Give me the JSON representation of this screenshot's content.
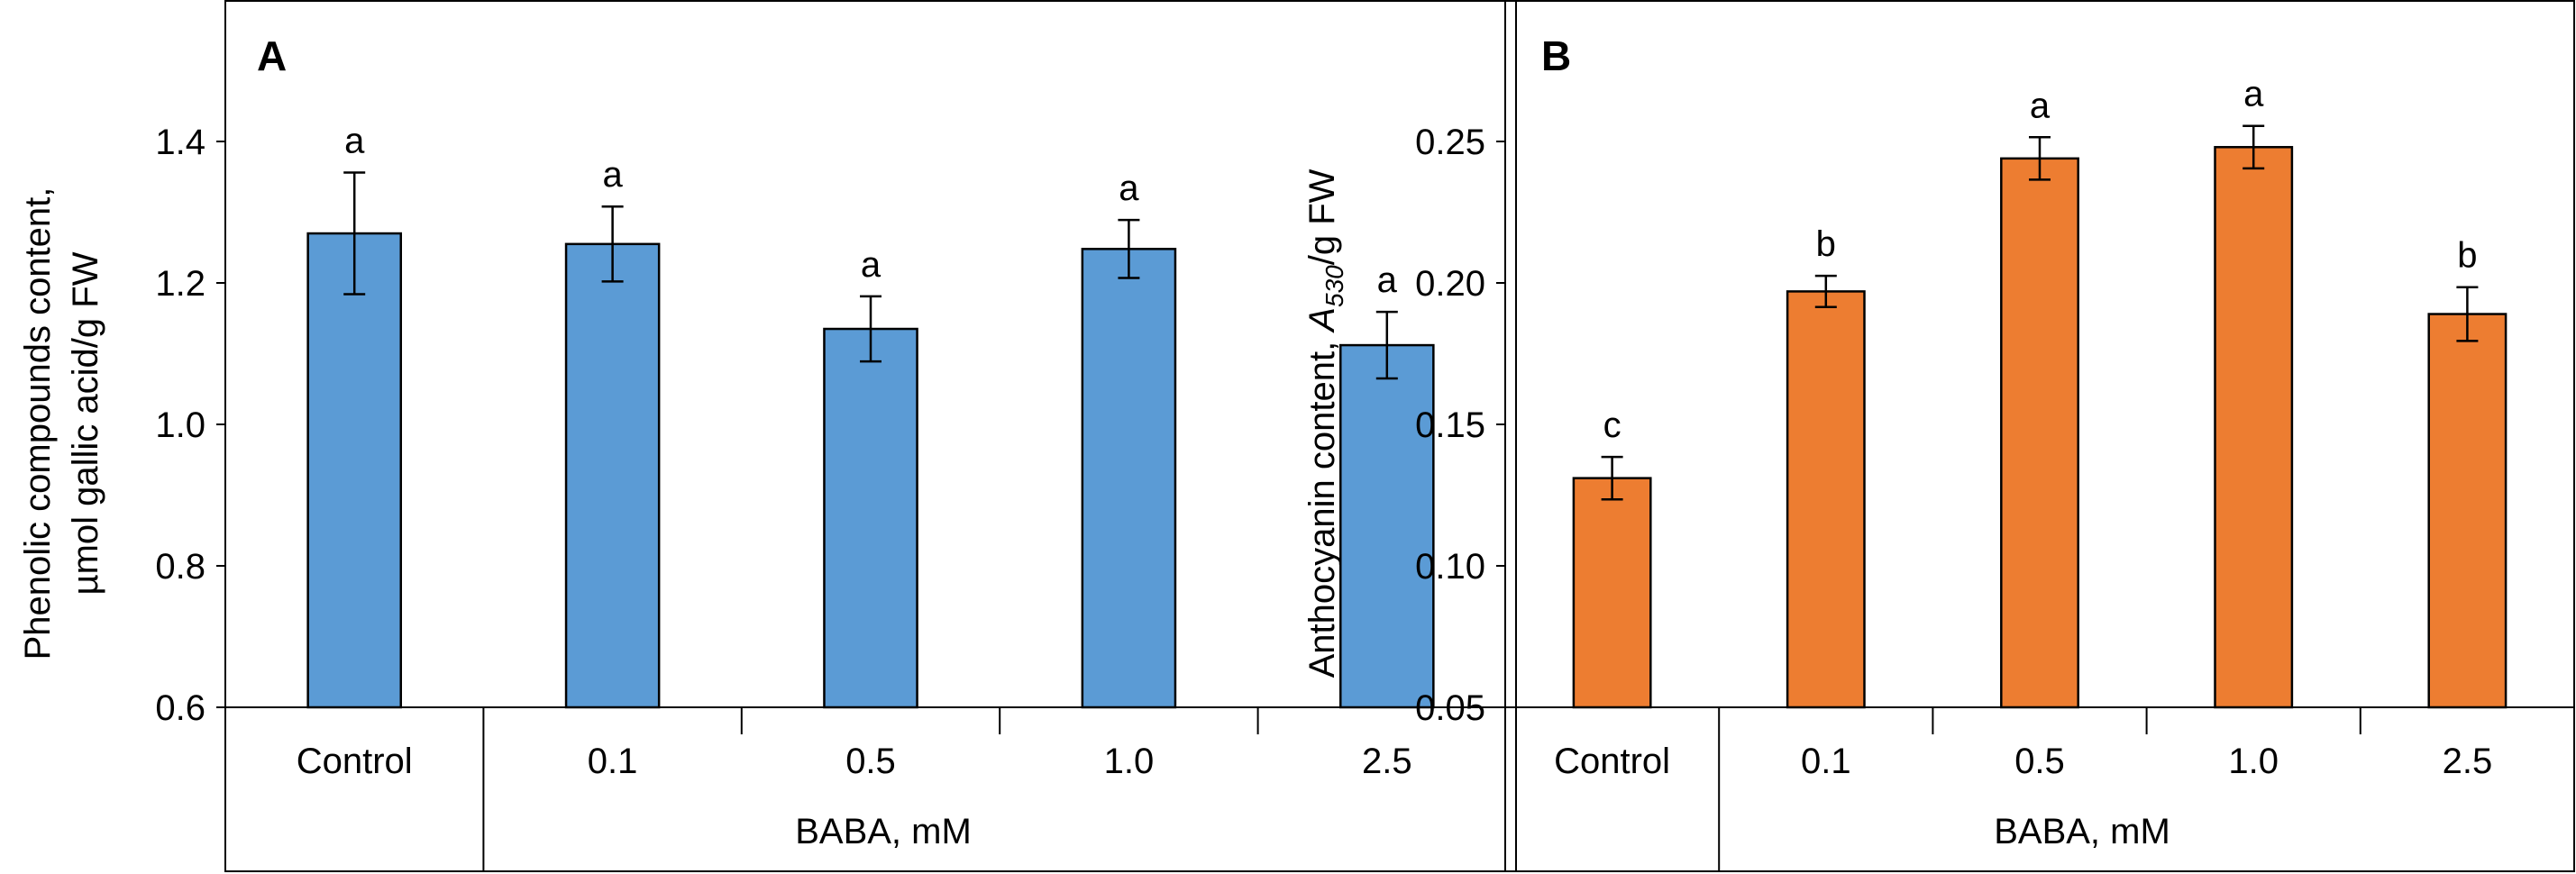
{
  "chart_data": [
    {
      "type": "bar",
      "panel_label": "A",
      "categories": [
        "Control",
        "0.1",
        "0.5",
        "1.0",
        "2.5"
      ],
      "group_label": "BABA, mM",
      "values": [
        1.27,
        1.255,
        1.135,
        1.248,
        1.112
      ],
      "errors": [
        0.086,
        0.053,
        0.046,
        0.041,
        0.047
      ],
      "significance": [
        "a",
        "a",
        "a",
        "a",
        "a"
      ],
      "ylabel_line1": "Phenolic compounds content,",
      "ylabel_line2": "µmol gallic acid/g FW",
      "ylim": [
        0.6,
        1.6
      ],
      "yticks": [
        "0.6",
        "0.8",
        "1.0",
        "1.2",
        "1.4"
      ],
      "ytick_values": [
        0.6,
        0.8,
        1.0,
        1.2,
        1.4
      ],
      "bar_color": "#5b9bd5"
    },
    {
      "type": "bar",
      "panel_label": "B",
      "categories": [
        "Control",
        "0.1",
        "0.5",
        "1.0",
        "2.5"
      ],
      "group_label": "BABA, mM",
      "values": [
        0.131,
        0.197,
        0.244,
        0.248,
        0.189
      ],
      "errors": [
        0.0075,
        0.0055,
        0.0075,
        0.0075,
        0.0095
      ],
      "significance": [
        "c",
        "b",
        "a",
        "a",
        "b"
      ],
      "ylabel_prefix": "Anthocyanin content, ",
      "ylabel_italic": "A",
      "ylabel_sub": "530",
      "ylabel_suffix": "/g FW",
      "ylim": [
        0.05,
        0.3
      ],
      "yticks": [
        "0.05",
        "0.10",
        "0.15",
        "0.20",
        "0.25"
      ],
      "ytick_values": [
        0.05,
        0.1,
        0.15,
        0.2,
        0.25
      ],
      "bar_color": "#ed7d31"
    }
  ]
}
